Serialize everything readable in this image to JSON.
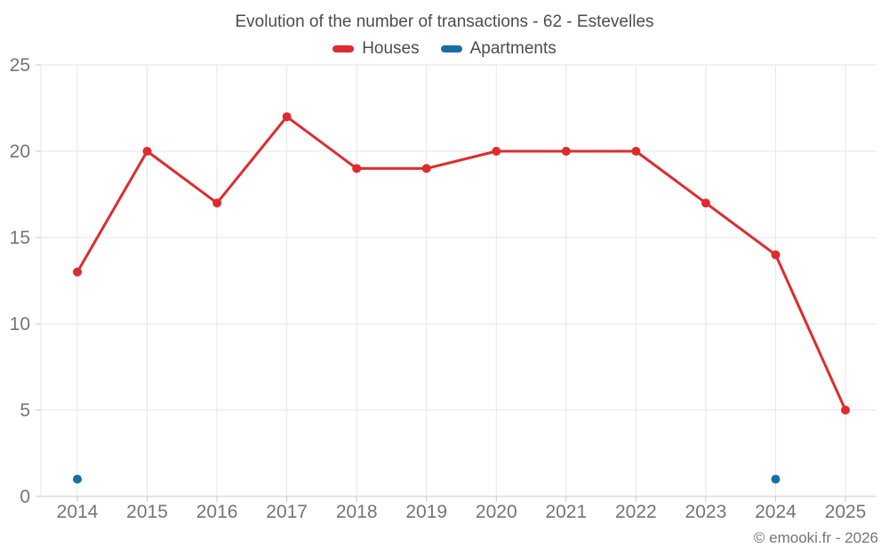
{
  "header": {
    "title": "Evolution of the number of transactions - 62 - Estevelles"
  },
  "legend": {
    "items": [
      {
        "label": "Houses",
        "color": "#df2b2e"
      },
      {
        "label": "Apartments",
        "color": "#176fa5"
      }
    ]
  },
  "footer": {
    "copyright": "© emooki.fr - 2026"
  },
  "chart_data": {
    "type": "line",
    "title": "Evolution of the number of transactions - 62 - Estevelles",
    "categories": [
      "2014",
      "2015",
      "2016",
      "2017",
      "2018",
      "2019",
      "2020",
      "2021",
      "2022",
      "2023",
      "2024",
      "2025"
    ],
    "series": [
      {
        "name": "Houses",
        "color": "#df2b2e",
        "values": [
          13,
          20,
          17,
          22,
          19,
          19,
          20,
          20,
          20,
          17,
          14,
          5
        ]
      },
      {
        "name": "Apartments",
        "color": "#176fa5",
        "values": [
          1,
          null,
          null,
          null,
          null,
          null,
          null,
          null,
          null,
          null,
          1,
          null
        ]
      }
    ],
    "ylim": [
      0,
      25
    ],
    "yticks": [
      0,
      5,
      10,
      15,
      20,
      25
    ],
    "grid": true,
    "legend_position": "top",
    "xlabel": "",
    "ylabel": ""
  }
}
